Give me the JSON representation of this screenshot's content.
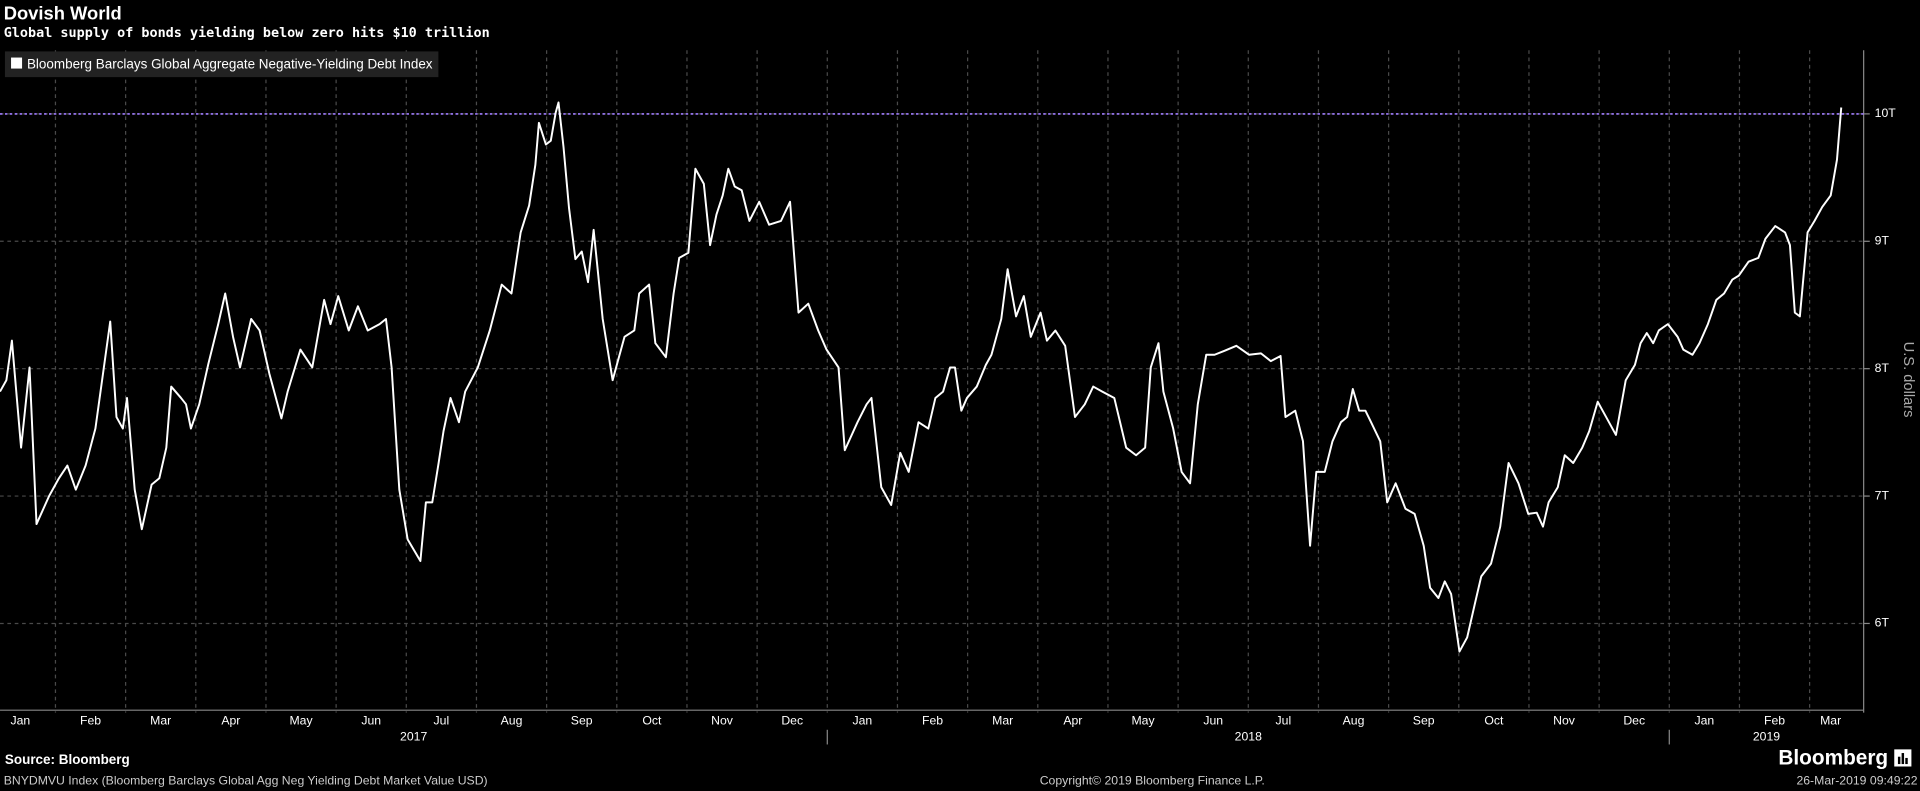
{
  "chart_data": {
    "type": "line",
    "title": "Dovish World",
    "subtitle": "Global supply of bonds yielding below zero hits $10 trillion",
    "ylabel": "U.S. dollars",
    "source": "Source: Bloomberg",
    "note": "BNYDMVU Index (Bloomberg Barclays Global Agg Neg Yielding Debt Market Value USD)",
    "copyright": "Copyright© 2019 Bloomberg Finance L.P.",
    "timestamp": "26-Mar-2019 09:49:22",
    "logo": "Bloomberg",
    "legend": "top-left",
    "grid": true,
    "reference_line": {
      "value": 10,
      "color": "#a07cff"
    },
    "ylim": [
      5.3,
      10.5
    ],
    "yticks": [
      {
        "value": 6,
        "label": "6T"
      },
      {
        "value": 7,
        "label": "7T"
      },
      {
        "value": 8,
        "label": "8T"
      },
      {
        "value": 9,
        "label": "9T"
      },
      {
        "value": 10,
        "label": "10T"
      }
    ],
    "xlim": [
      0.21,
      26.77
    ],
    "xgrid": [
      1,
      2,
      3,
      4,
      5,
      6,
      7,
      8,
      9,
      10,
      11,
      12,
      13,
      14,
      15,
      16,
      17,
      18,
      19,
      20,
      21,
      22,
      23,
      24,
      25,
      26
    ],
    "xticks": [
      {
        "value": 0.5,
        "label": "Jan"
      },
      {
        "value": 1.5,
        "label": "Feb"
      },
      {
        "value": 2.5,
        "label": "Mar"
      },
      {
        "value": 3.5,
        "label": "Apr"
      },
      {
        "value": 4.5,
        "label": "May"
      },
      {
        "value": 5.5,
        "label": "Jun"
      },
      {
        "value": 6.5,
        "label": "Jul"
      },
      {
        "value": 7.5,
        "label": "Aug"
      },
      {
        "value": 8.5,
        "label": "Sep"
      },
      {
        "value": 9.5,
        "label": "Oct"
      },
      {
        "value": 10.5,
        "label": "Nov"
      },
      {
        "value": 11.5,
        "label": "Dec"
      },
      {
        "value": 12.5,
        "label": "Jan"
      },
      {
        "value": 13.5,
        "label": "Feb"
      },
      {
        "value": 14.5,
        "label": "Mar"
      },
      {
        "value": 15.5,
        "label": "Apr"
      },
      {
        "value": 16.5,
        "label": "May"
      },
      {
        "value": 17.5,
        "label": "Jun"
      },
      {
        "value": 18.5,
        "label": "Jul"
      },
      {
        "value": 19.5,
        "label": "Aug"
      },
      {
        "value": 20.5,
        "label": "Sep"
      },
      {
        "value": 21.5,
        "label": "Oct"
      },
      {
        "value": 22.5,
        "label": "Nov"
      },
      {
        "value": 23.5,
        "label": "Dec"
      },
      {
        "value": 24.5,
        "label": "Jan"
      },
      {
        "value": 25.5,
        "label": "Feb"
      },
      {
        "value": 26.3,
        "label": "Mar"
      }
    ],
    "x_groups": [
      {
        "label": "2017",
        "start": 0.21,
        "end": 12
      },
      {
        "label": "2018",
        "start": 12,
        "end": 24
      },
      {
        "label": "2019",
        "start": 24,
        "end": 26.77
      }
    ],
    "series": [
      {
        "name": "Bloomberg Barclays Global Aggregate Negative-Yielding Debt Index",
        "color": "#ffffff",
        "x": [
          0.21,
          0.3,
          0.38,
          0.51,
          0.63,
          0.73,
          0.91,
          1.05,
          1.17,
          1.29,
          1.43,
          1.57,
          1.69,
          1.78,
          1.87,
          1.96,
          2.02,
          2.13,
          2.23,
          2.37,
          2.48,
          2.58,
          2.65,
          2.79,
          2.86,
          2.93,
          3.05,
          3.18,
          3.32,
          3.42,
          3.53,
          3.63,
          3.79,
          3.91,
          4.05,
          4.22,
          4.31,
          4.49,
          4.66,
          4.83,
          4.92,
          5.03,
          5.18,
          5.31,
          5.45,
          5.62,
          5.71,
          5.79,
          5.9,
          6.02,
          6.2,
          6.28,
          6.37,
          6.46,
          6.53,
          6.63,
          6.75,
          6.84,
          7.02,
          7.19,
          7.36,
          7.5,
          7.63,
          7.75,
          7.84,
          7.89,
          7.99,
          8.06,
          8.13,
          8.17,
          8.24,
          8.32,
          8.41,
          8.5,
          8.59,
          8.67,
          8.8,
          8.94,
          9.11,
          9.25,
          9.32,
          9.46,
          9.55,
          9.7,
          9.81,
          9.89,
          10.02,
          10.12,
          10.24,
          10.33,
          10.42,
          10.51,
          10.59,
          10.68,
          10.78,
          10.89,
          11.03,
          11.17,
          11.34,
          11.47,
          11.59,
          11.73,
          11.87,
          11.99,
          12.16,
          12.25,
          12.43,
          12.56,
          12.63,
          12.77,
          12.91,
          13.04,
          13.16,
          13.3,
          13.44,
          13.54,
          13.65,
          13.75,
          13.82,
          13.91,
          13.99,
          14.13,
          14.26,
          14.34,
          14.48,
          14.57,
          14.69,
          14.8,
          14.9,
          15.04,
          15.13,
          15.25,
          15.39,
          15.53,
          15.67,
          15.79,
          15.92,
          16.09,
          16.26,
          16.4,
          16.53,
          16.61,
          16.72,
          16.79,
          16.93,
          17.05,
          17.17,
          17.28,
          17.4,
          17.52,
          17.66,
          17.83,
          18.01,
          18.18,
          18.32,
          18.46,
          18.53,
          18.67,
          18.78,
          18.88,
          18.97,
          19.09,
          19.2,
          19.32,
          19.41,
          19.49,
          19.58,
          19.67,
          19.75,
          19.88,
          19.98,
          20.1,
          20.24,
          20.37,
          20.5,
          20.59,
          20.71,
          20.8,
          20.89,
          21.01,
          21.12,
          21.24,
          21.32,
          21.46,
          21.59,
          21.71,
          21.85,
          21.99,
          22.11,
          22.2,
          22.28,
          22.41,
          22.51,
          22.63,
          22.76,
          22.86,
          22.98,
          23.1,
          23.24,
          23.38,
          23.51,
          23.59,
          23.68,
          23.77,
          23.85,
          23.98,
          24.12,
          24.2,
          24.33,
          24.43,
          24.55,
          24.67,
          24.78,
          24.9,
          24.99,
          25.13,
          25.27,
          25.37,
          25.51,
          25.65,
          25.72,
          25.79,
          25.86,
          25.97,
          26.07,
          26.18,
          26.3,
          26.39,
          26.45
        ],
        "values": [
          7.82,
          7.91,
          8.22,
          7.38,
          8.01,
          6.78,
          7.0,
          7.14,
          7.24,
          7.05,
          7.24,
          7.53,
          8.01,
          8.37,
          7.62,
          7.53,
          7.77,
          7.05,
          6.74,
          7.09,
          7.14,
          7.38,
          7.86,
          7.77,
          7.72,
          7.53,
          7.72,
          8.04,
          8.35,
          8.59,
          8.25,
          8.01,
          8.39,
          8.3,
          7.96,
          7.61,
          7.82,
          8.15,
          8.01,
          8.54,
          8.35,
          8.57,
          8.3,
          8.49,
          8.3,
          8.35,
          8.39,
          8.01,
          7.05,
          6.66,
          6.49,
          6.95,
          6.95,
          7.26,
          7.51,
          7.77,
          7.58,
          7.82,
          8.01,
          8.3,
          8.66,
          8.59,
          9.07,
          9.28,
          9.6,
          9.93,
          9.76,
          9.79,
          10.01,
          10.09,
          9.74,
          9.26,
          8.86,
          8.92,
          8.68,
          9.09,
          8.39,
          7.91,
          8.25,
          8.3,
          8.59,
          8.66,
          8.2,
          8.09,
          8.59,
          8.87,
          8.91,
          9.57,
          9.45,
          8.97,
          9.21,
          9.36,
          9.57,
          9.43,
          9.4,
          9.16,
          9.31,
          9.13,
          9.16,
          9.31,
          8.44,
          8.51,
          8.3,
          8.15,
          8.01,
          7.36,
          7.58,
          7.72,
          7.77,
          7.07,
          6.93,
          7.34,
          7.19,
          7.58,
          7.53,
          7.77,
          7.82,
          8.01,
          8.01,
          7.67,
          7.77,
          7.86,
          8.03,
          8.11,
          8.39,
          8.78,
          8.41,
          8.57,
          8.25,
          8.44,
          8.22,
          8.3,
          8.18,
          7.62,
          7.72,
          7.86,
          7.82,
          7.77,
          7.38,
          7.32,
          7.38,
          8.01,
          8.2,
          7.82,
          7.53,
          7.19,
          7.1,
          7.72,
          8.11,
          8.11,
          8.14,
          8.18,
          8.11,
          8.12,
          8.06,
          8.1,
          7.62,
          7.67,
          7.43,
          6.61,
          7.19,
          7.19,
          7.43,
          7.58,
          7.62,
          7.84,
          7.67,
          7.67,
          7.58,
          7.43,
          6.95,
          7.1,
          6.9,
          6.86,
          6.61,
          6.28,
          6.2,
          6.33,
          6.23,
          5.78,
          5.89,
          6.18,
          6.37,
          6.47,
          6.76,
          7.26,
          7.1,
          6.86,
          6.87,
          6.76,
          6.95,
          7.07,
          7.32,
          7.26,
          7.38,
          7.51,
          7.74,
          7.62,
          7.48,
          7.91,
          8.03,
          8.2,
          8.28,
          8.2,
          8.3,
          8.35,
          8.25,
          8.15,
          8.11,
          8.2,
          8.35,
          8.54,
          8.59,
          8.7,
          8.73,
          8.84,
          8.87,
          9.02,
          9.12,
          9.07,
          8.97,
          8.44,
          8.41,
          9.07,
          9.16,
          9.27,
          9.36,
          9.64,
          10.05
        ]
      }
    ]
  }
}
